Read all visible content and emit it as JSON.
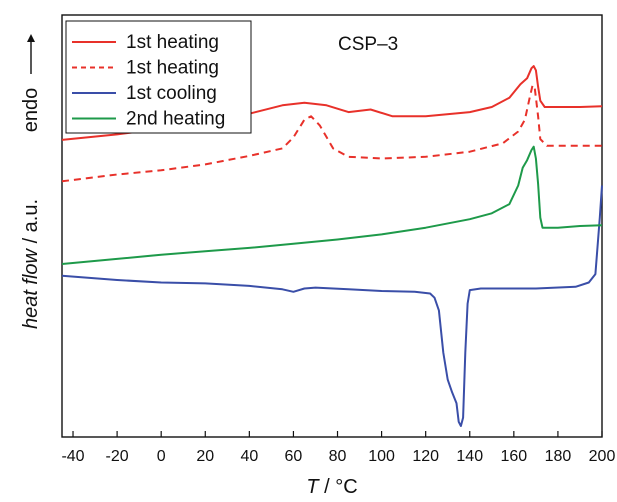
{
  "chart_data": {
    "type": "line",
    "annotation": "CSP–3",
    "xlabel_var": "T",
    "xlabel_unit": " / °C",
    "ylabel_main": "heat flow",
    "ylabel_unit": " / a.u.",
    "ylabel_extra": "endo",
    "xlim": [
      -45,
      200
    ],
    "xticks": [
      "-40",
      "-20",
      "0",
      "20",
      "40",
      "60",
      "80",
      "100",
      "120",
      "140",
      "160",
      "180",
      "200"
    ],
    "ylim": [
      0,
      100
    ],
    "legend_position": "top-left",
    "series": [
      {
        "name": "1st heating",
        "color": "#e8312a",
        "dash": "solid",
        "points": [
          [
            -45,
            70.4
          ],
          [
            -20,
            71.7
          ],
          [
            0,
            73.0
          ],
          [
            20,
            74.4
          ],
          [
            40,
            76.6
          ],
          [
            55,
            78.6
          ],
          [
            65,
            79.2
          ],
          [
            75,
            78.6
          ],
          [
            85,
            77.0
          ],
          [
            95,
            77.6
          ],
          [
            105,
            76.0
          ],
          [
            120,
            76.0
          ],
          [
            140,
            77.0
          ],
          [
            150,
            78.2
          ],
          [
            158,
            80.4
          ],
          [
            163,
            83.6
          ],
          [
            166,
            85.0
          ],
          [
            168,
            87.4
          ],
          [
            169,
            87.9
          ],
          [
            170,
            86.9
          ],
          [
            171,
            83.0
          ],
          [
            172,
            79.7
          ],
          [
            174,
            78.2
          ],
          [
            180,
            78.2
          ],
          [
            190,
            78.2
          ],
          [
            200,
            78.4
          ]
        ]
      },
      {
        "name": "1st heating",
        "color": "#e8312a",
        "dash": "dashed",
        "points": [
          [
            -45,
            60.6
          ],
          [
            -20,
            62.2
          ],
          [
            0,
            63.2
          ],
          [
            20,
            64.6
          ],
          [
            40,
            66.6
          ],
          [
            55,
            68.4
          ],
          [
            60,
            71.0
          ],
          [
            65,
            75.2
          ],
          [
            68,
            76.0
          ],
          [
            72,
            73.8
          ],
          [
            78,
            68.4
          ],
          [
            85,
            66.4
          ],
          [
            100,
            66.0
          ],
          [
            120,
            66.4
          ],
          [
            140,
            67.6
          ],
          [
            155,
            69.6
          ],
          [
            162,
            72.4
          ],
          [
            165,
            75.2
          ],
          [
            167,
            80.0
          ],
          [
            168.5,
            83.4
          ],
          [
            169.5,
            82.6
          ],
          [
            171,
            76.0
          ],
          [
            172,
            70.6
          ],
          [
            175,
            69.0
          ],
          [
            190,
            69.0
          ],
          [
            200,
            69.0
          ]
        ]
      },
      {
        "name": "1st cooling",
        "color": "#3a4ea8",
        "dash": "solid",
        "points": [
          [
            -45,
            38.2
          ],
          [
            -20,
            37.2
          ],
          [
            0,
            36.6
          ],
          [
            20,
            36.4
          ],
          [
            40,
            35.8
          ],
          [
            55,
            35.0
          ],
          [
            60,
            34.4
          ],
          [
            65,
            35.2
          ],
          [
            70,
            35.4
          ],
          [
            85,
            35.0
          ],
          [
            100,
            34.6
          ],
          [
            115,
            34.4
          ],
          [
            122,
            34.0
          ],
          [
            124,
            33.0
          ],
          [
            126,
            30.0
          ],
          [
            128,
            20.0
          ],
          [
            130,
            13.6
          ],
          [
            132,
            10.6
          ],
          [
            134,
            8.0
          ],
          [
            135,
            3.6
          ],
          [
            136,
            2.6
          ],
          [
            137,
            4.6
          ],
          [
            138,
            20.0
          ],
          [
            139,
            31.6
          ],
          [
            140,
            34.8
          ],
          [
            145,
            35.2
          ],
          [
            170,
            35.2
          ],
          [
            188,
            35.6
          ],
          [
            194,
            36.6
          ],
          [
            197,
            38.6
          ],
          [
            199,
            52.0
          ],
          [
            200,
            59.6
          ]
        ]
      },
      {
        "name": "2nd heating",
        "color": "#1e9a4a",
        "dash": "solid",
        "points": [
          [
            -45,
            41.0
          ],
          [
            -20,
            42.2
          ],
          [
            0,
            43.2
          ],
          [
            20,
            44.0
          ],
          [
            40,
            44.8
          ],
          [
            60,
            45.8
          ],
          [
            80,
            46.8
          ],
          [
            100,
            48.0
          ],
          [
            120,
            49.6
          ],
          [
            140,
            51.6
          ],
          [
            150,
            53.0
          ],
          [
            158,
            55.2
          ],
          [
            162,
            59.6
          ],
          [
            164,
            63.8
          ],
          [
            166,
            65.6
          ],
          [
            168,
            68.0
          ],
          [
            169,
            68.8
          ],
          [
            170,
            66.0
          ],
          [
            171,
            60.0
          ],
          [
            172,
            52.0
          ],
          [
            173,
            49.6
          ],
          [
            180,
            49.6
          ],
          [
            190,
            50.0
          ],
          [
            200,
            50.2
          ]
        ]
      }
    ]
  }
}
